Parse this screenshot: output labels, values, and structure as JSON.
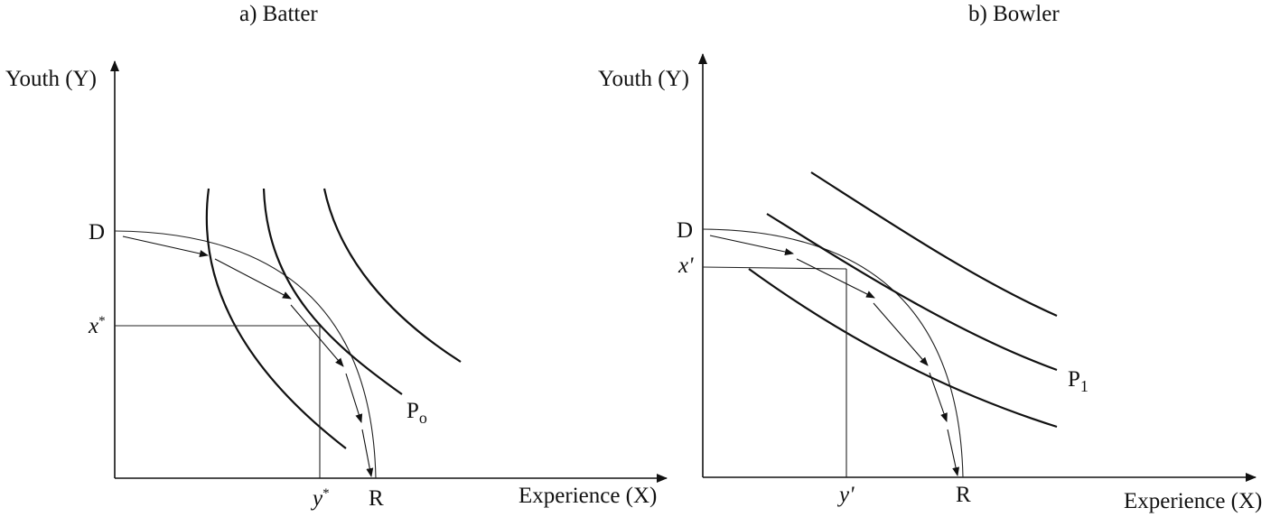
{
  "panels": [
    {
      "title": "a)   Batter",
      "y_axis_label": "Youth (Y)",
      "x_axis_label": "Experience (X)",
      "point_d": "D",
      "point_r": "R",
      "y_tick_label": "x",
      "y_tick_sup": "*",
      "x_tick_label": "y",
      "x_tick_sup": "*",
      "curve_label": "P",
      "curve_label_sub": "o"
    },
    {
      "title": "b) Bowler",
      "y_axis_label": "Youth (Y)",
      "x_axis_label": "Experience (X)",
      "point_d": "D",
      "point_r": "R",
      "y_tick_label": "x'",
      "x_tick_label": "y'",
      "curve_label": "P",
      "curve_label_sub": "1"
    }
  ]
}
